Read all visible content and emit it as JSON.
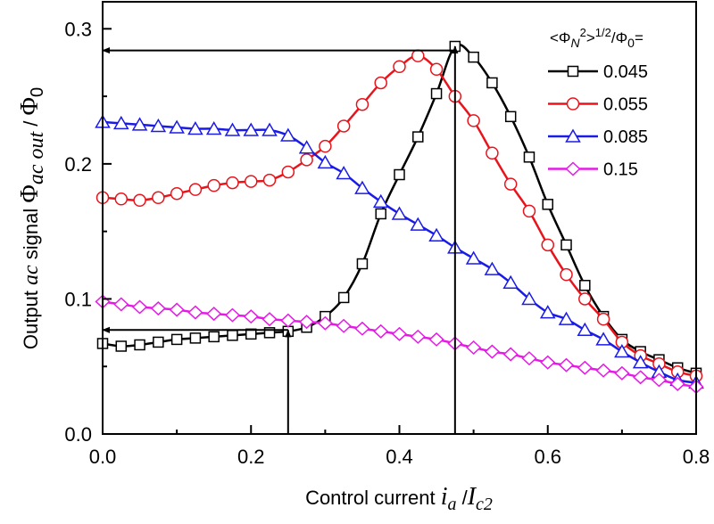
{
  "chart_data": {
    "type": "line",
    "title": "",
    "xlabel": "Control current i_a /I_c2",
    "ylabel": "Output ac signal Φ_ac out / Φ_0",
    "xlim": [
      0.0,
      0.8
    ],
    "ylim": [
      0.0,
      0.32
    ],
    "xticks": [
      "0.0",
      "0.2",
      "0.4",
      "0.6",
      "0.8"
    ],
    "yticks": [
      "0.0",
      "0.1",
      "0.2",
      "0.3"
    ],
    "grid": false,
    "legend": {
      "placement": "top-right",
      "title": "<Φ_N²>^(1/2)/Φ_0="
    },
    "series": [
      {
        "name": "0.045",
        "color": "#000000",
        "marker": "square",
        "x": [
          0.0,
          0.025,
          0.05,
          0.075,
          0.1,
          0.125,
          0.15,
          0.175,
          0.2,
          0.225,
          0.25,
          0.275,
          0.3,
          0.325,
          0.35,
          0.375,
          0.4,
          0.425,
          0.45,
          0.475,
          0.5,
          0.525,
          0.55,
          0.575,
          0.6,
          0.625,
          0.65,
          0.675,
          0.7,
          0.725,
          0.75,
          0.775,
          0.8
        ],
        "y": [
          0.067,
          0.065,
          0.066,
          0.068,
          0.07,
          0.071,
          0.072,
          0.073,
          0.074,
          0.075,
          0.076,
          0.079,
          0.087,
          0.101,
          0.126,
          0.163,
          0.192,
          0.22,
          0.252,
          0.287,
          0.279,
          0.26,
          0.235,
          0.205,
          0.17,
          0.14,
          0.11,
          0.087,
          0.07,
          0.061,
          0.055,
          0.049,
          0.045
        ]
      },
      {
        "name": "0.055",
        "color": "#e8141c",
        "marker": "circle",
        "x": [
          0.0,
          0.025,
          0.05,
          0.075,
          0.1,
          0.125,
          0.15,
          0.175,
          0.2,
          0.225,
          0.25,
          0.275,
          0.3,
          0.325,
          0.35,
          0.375,
          0.4,
          0.425,
          0.45,
          0.475,
          0.5,
          0.525,
          0.55,
          0.575,
          0.6,
          0.625,
          0.65,
          0.675,
          0.7,
          0.725,
          0.75,
          0.775,
          0.8
        ],
        "y": [
          0.175,
          0.174,
          0.173,
          0.175,
          0.178,
          0.181,
          0.184,
          0.186,
          0.187,
          0.188,
          0.194,
          0.203,
          0.213,
          0.228,
          0.244,
          0.26,
          0.272,
          0.28,
          0.27,
          0.25,
          0.232,
          0.208,
          0.185,
          0.165,
          0.14,
          0.118,
          0.1,
          0.085,
          0.068,
          0.058,
          0.052,
          0.046,
          0.043
        ]
      },
      {
        "name": "0.085",
        "color": "#1b1be6",
        "marker": "triangle",
        "x": [
          0.0,
          0.025,
          0.05,
          0.075,
          0.1,
          0.125,
          0.15,
          0.175,
          0.2,
          0.225,
          0.25,
          0.275,
          0.3,
          0.325,
          0.35,
          0.375,
          0.4,
          0.425,
          0.45,
          0.475,
          0.5,
          0.525,
          0.55,
          0.575,
          0.6,
          0.625,
          0.65,
          0.675,
          0.7,
          0.725,
          0.75,
          0.775,
          0.8
        ],
        "y": [
          0.231,
          0.23,
          0.229,
          0.228,
          0.227,
          0.226,
          0.226,
          0.225,
          0.225,
          0.225,
          0.221,
          0.212,
          0.201,
          0.193,
          0.182,
          0.172,
          0.163,
          0.155,
          0.147,
          0.138,
          0.13,
          0.122,
          0.112,
          0.1,
          0.09,
          0.085,
          0.077,
          0.07,
          0.061,
          0.053,
          0.046,
          0.04,
          0.038
        ]
      },
      {
        "name": "0.15",
        "color": "#e619e6",
        "marker": "diamond",
        "x": [
          0.0,
          0.025,
          0.05,
          0.075,
          0.1,
          0.125,
          0.15,
          0.175,
          0.2,
          0.225,
          0.25,
          0.275,
          0.3,
          0.325,
          0.35,
          0.375,
          0.4,
          0.425,
          0.45,
          0.475,
          0.5,
          0.525,
          0.55,
          0.575,
          0.6,
          0.625,
          0.65,
          0.675,
          0.7,
          0.725,
          0.75,
          0.775,
          0.8
        ],
        "y": [
          0.098,
          0.096,
          0.094,
          0.093,
          0.092,
          0.09,
          0.089,
          0.088,
          0.087,
          0.085,
          0.084,
          0.083,
          0.082,
          0.08,
          0.078,
          0.076,
          0.074,
          0.072,
          0.07,
          0.067,
          0.064,
          0.061,
          0.059,
          0.056,
          0.053,
          0.051,
          0.049,
          0.047,
          0.045,
          0.042,
          0.04,
          0.037,
          0.035
        ]
      }
    ],
    "annotations": [
      {
        "type": "arrow",
        "from": [
          0.25,
          0.0
        ],
        "to": [
          0.25,
          0.077
        ]
      },
      {
        "type": "arrow",
        "from": [
          0.25,
          0.077
        ],
        "to": [
          0.0,
          0.077
        ]
      },
      {
        "type": "arrow",
        "from": [
          0.475,
          0.0
        ],
        "to": [
          0.475,
          0.287
        ]
      },
      {
        "type": "arrow",
        "from": [
          0.475,
          0.284
        ],
        "to": [
          0.0,
          0.284
        ]
      }
    ]
  }
}
